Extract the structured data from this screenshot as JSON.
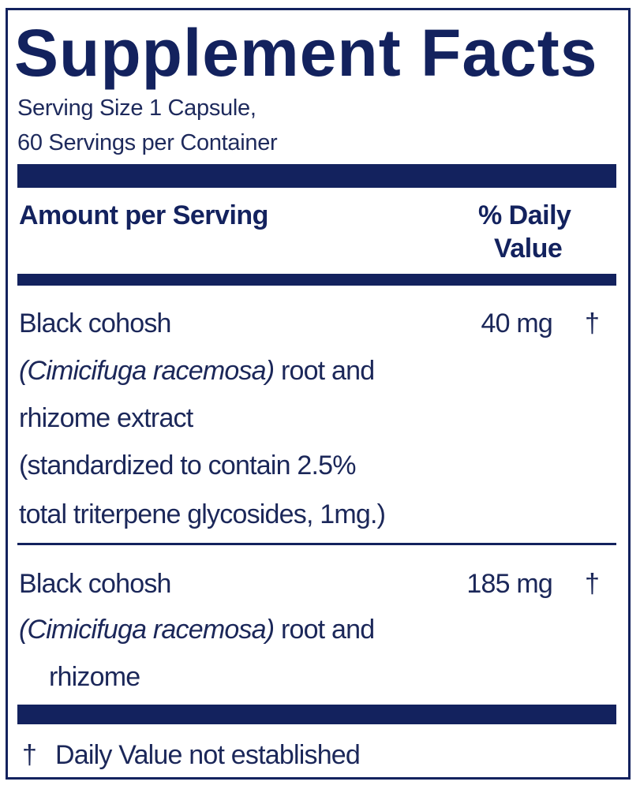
{
  "title": "Supplement Facts",
  "serving_size": "Serving Size 1 Capsule,",
  "servings_per_container": "60 Servings per Container",
  "header": {
    "amount_label": "Amount per Serving",
    "dv_label_line1": "% Daily",
    "dv_label_line2": "Value"
  },
  "ingredients": [
    {
      "name": "Black cohosh",
      "latin": "(Cimicifuga racemosa)",
      "latin_suffix": " root and",
      "lines": [
        "rhizome extract",
        "(standardized to contain 2.5%",
        "total triterpene glycosides, 1mg.)"
      ],
      "amount": "40 mg",
      "dv": "†"
    },
    {
      "name": "Black cohosh",
      "latin": "(Cimicifuga racemosa)",
      "latin_suffix": " root and",
      "lines": [
        "rhizome"
      ],
      "amount": "185 mg",
      "dv": "†"
    }
  ],
  "footnote": {
    "symbol": "†",
    "text": "Daily Value not established"
  },
  "colors": {
    "navy": "#13225e",
    "background": "#ffffff"
  }
}
